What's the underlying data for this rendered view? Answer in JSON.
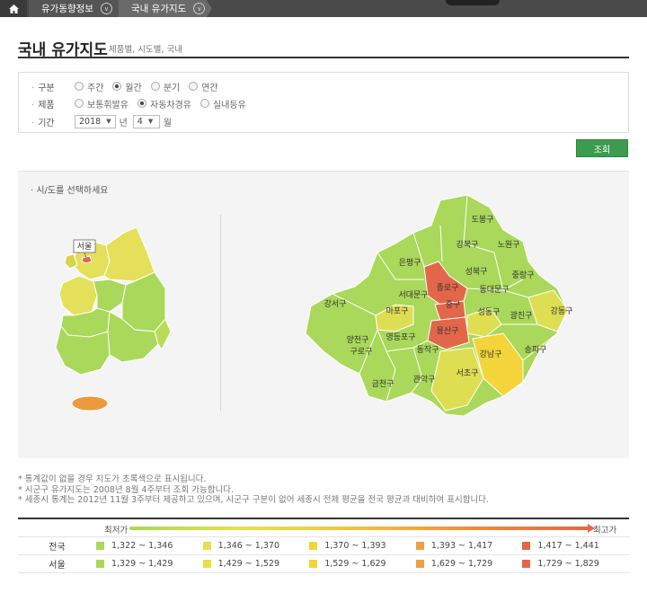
{
  "nav": {
    "crumb1": "유가동향정보",
    "crumb2": "국내 유가지도"
  },
  "header": {
    "title": "국내 유가지도",
    "subtitle": "제품별, 시도별, 국내"
  },
  "filter": {
    "period_label": "구분",
    "period_options": [
      {
        "label": "주간",
        "checked": false
      },
      {
        "label": "월간",
        "checked": true
      },
      {
        "label": "분기",
        "checked": false
      },
      {
        "label": "연간",
        "checked": false
      }
    ],
    "product_label": "제품",
    "product_options": [
      {
        "label": "보통휘발유",
        "checked": false
      },
      {
        "label": "자동차경유",
        "checked": true
      },
      {
        "label": "실내등유",
        "checked": false
      }
    ],
    "date_label": "기간",
    "year_value": "2018",
    "year_unit": "년",
    "month_value": "4",
    "month_unit": "월"
  },
  "search_button": "조회",
  "map": {
    "hint": "시/도를 선택하세요",
    "seoul_tag": "서울",
    "districts": [
      "도봉구",
      "강북구",
      "노원구",
      "은평구",
      "성북구",
      "중랑구",
      "종로구",
      "동대문구",
      "서대문구",
      "강서구",
      "마포구",
      "중구",
      "성동구",
      "광진구",
      "강동구",
      "용산구",
      "양천구",
      "영등포구",
      "구로구",
      "동작구",
      "강남구",
      "송파구",
      "서초구",
      "관악구",
      "금천구"
    ]
  },
  "notes": [
    "* 통계값이 없을 경우 지도가 초록색으로 표시됩니다.",
    "* 시군구 유가지도는 2008년 8월 4주부터 조회 가능합니다.",
    "* 세종시 통계는 2012년 11월 3주부터 제공하고 있으며, 시군구 구분이 없어 세종시 전체 평균을 전국 평균과 대비하여 표시합니다."
  ],
  "legend": {
    "low": "최저가",
    "high": "최고가",
    "colors": [
      "#a9d85a",
      "#e6e04a",
      "#f3d43a",
      "#eba243",
      "#e2674a"
    ],
    "rows": [
      {
        "name": "전국",
        "ranges": [
          "1,322 ~ 1,346",
          "1,346 ~ 1,370",
          "1,370 ~ 1,393",
          "1,393 ~ 1,417",
          "1,417 ~ 1,441"
        ]
      },
      {
        "name": "서울",
        "ranges": [
          "1,329 ~ 1,429",
          "1,429 ~ 1,529",
          "1,529 ~ 1,629",
          "1,629 ~ 1,729",
          "1,729 ~ 1,829"
        ]
      }
    ]
  }
}
